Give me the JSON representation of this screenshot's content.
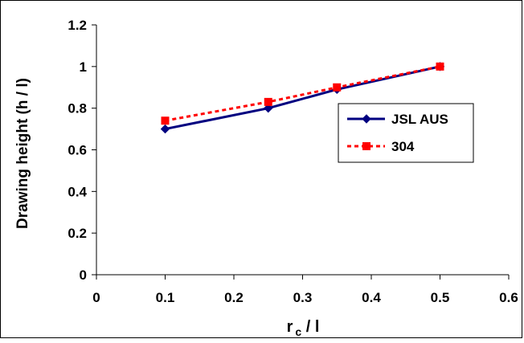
{
  "chart_data": {
    "type": "line",
    "xlabel": "r",
    "xlabel_subscript": "c",
    "xlabel_suffix": " / l",
    "ylabel": "Drawing height (h / l)",
    "xlim": [
      0,
      0.6
    ],
    "ylim": [
      0,
      1.2
    ],
    "xticks": [
      "0",
      "0.1",
      "0.2",
      "0.3",
      "0.4",
      "0.5",
      "0.6"
    ],
    "yticks": [
      "0",
      "0.2",
      "0.4",
      "0.6",
      "0.8",
      "1",
      "1.2"
    ],
    "grid": false,
    "legend_position": "right",
    "series": [
      {
        "name": "JSL AUS",
        "color": "#000080",
        "line_style": "solid",
        "marker": "diamond",
        "x": [
          0.1,
          0.25,
          0.35,
          0.5
        ],
        "y": [
          0.7,
          0.8,
          0.89,
          1.0
        ]
      },
      {
        "name": "304",
        "color": "#ff0000",
        "line_style": "dashed",
        "marker": "square",
        "x": [
          0.1,
          0.25,
          0.35,
          0.5
        ],
        "y": [
          0.74,
          0.83,
          0.9,
          1.0
        ]
      }
    ]
  }
}
